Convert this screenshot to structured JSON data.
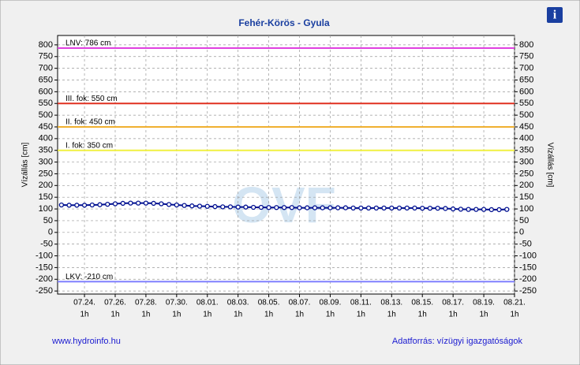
{
  "chart_data": {
    "type": "line",
    "title": "Fehér-Körös - Gyula",
    "y_label": "Vízállás [cm]",
    "y2_label": "Vízállás [cm]",
    "footer_left": "www.hydroinfo.hu",
    "footer_right": "Adatforrás: vízügyi igazgatóságok",
    "watermark": "OVF",
    "info_icon": "i",
    "xlim": [
      -1.75,
      28
    ],
    "ylim": [
      -263,
      840
    ],
    "grid": true,
    "xtick_sublabel": "1h",
    "xticks": [
      {
        "value": 0,
        "label": "07.24."
      },
      {
        "value": 2,
        "label": "07.26."
      },
      {
        "value": 4,
        "label": "07.28."
      },
      {
        "value": 6,
        "label": "07.30."
      },
      {
        "value": 8,
        "label": "08.01."
      },
      {
        "value": 10,
        "label": "08.03."
      },
      {
        "value": 12,
        "label": "08.05."
      },
      {
        "value": 14,
        "label": "08.07."
      },
      {
        "value": 16,
        "label": "08.09."
      },
      {
        "value": 18,
        "label": "08.11."
      },
      {
        "value": 20,
        "label": "08.13."
      },
      {
        "value": 22,
        "label": "08.15."
      },
      {
        "value": 24,
        "label": "08.17."
      },
      {
        "value": 26,
        "label": "08.19."
      },
      {
        "value": 28,
        "label": "08.21."
      }
    ],
    "yticks": [
      -250,
      -200,
      -150,
      -100,
      -50,
      0,
      50,
      100,
      150,
      200,
      250,
      300,
      350,
      400,
      450,
      500,
      550,
      600,
      650,
      700,
      750,
      800
    ],
    "reference_lines": [
      {
        "label": "LNV: 786 cm",
        "value": 786,
        "color": "#e040e0"
      },
      {
        "label": "III. fok: 550 cm",
        "value": 550,
        "color": "#e03020"
      },
      {
        "label": "II. fok: 450 cm",
        "value": 450,
        "color": "#f0b030"
      },
      {
        "label": "I. fok: 350 cm",
        "value": 350,
        "color": "#f0f040"
      },
      {
        "label": "LKV: -210 cm",
        "value": -210,
        "color": "#8080ff"
      }
    ],
    "series": [
      {
        "color": "#001090",
        "x": [
          -1.5,
          -1,
          -0.5,
          0,
          0.5,
          1,
          1.5,
          2,
          2.5,
          3,
          3.5,
          4,
          4.5,
          5,
          5.5,
          6,
          6.5,
          7,
          7.5,
          8,
          8.5,
          9,
          9.5,
          10,
          10.5,
          11,
          11.5,
          12,
          12.5,
          13,
          13.5,
          14,
          14.5,
          15,
          15.5,
          16,
          16.5,
          17,
          17.5,
          18,
          18.5,
          19,
          19.5,
          20,
          20.5,
          21,
          21.5,
          22,
          22.5,
          23,
          23.5,
          24,
          24.5,
          25,
          25.5,
          26,
          26.5,
          27,
          27.5
        ],
        "values": [
          117,
          116,
          116,
          116,
          117,
          118,
          120,
          122,
          124,
          125,
          125,
          125,
          124,
          122,
          119,
          117,
          115,
          113,
          112,
          111,
          110,
          109,
          109,
          108,
          108,
          107,
          107,
          106,
          106,
          106,
          106,
          105,
          105,
          105,
          105,
          105,
          105,
          105,
          104,
          104,
          104,
          104,
          104,
          104,
          104,
          104,
          104,
          103,
          103,
          103,
          102,
          100,
          99,
          98,
          98,
          98,
          97,
          97,
          98
        ]
      }
    ]
  }
}
